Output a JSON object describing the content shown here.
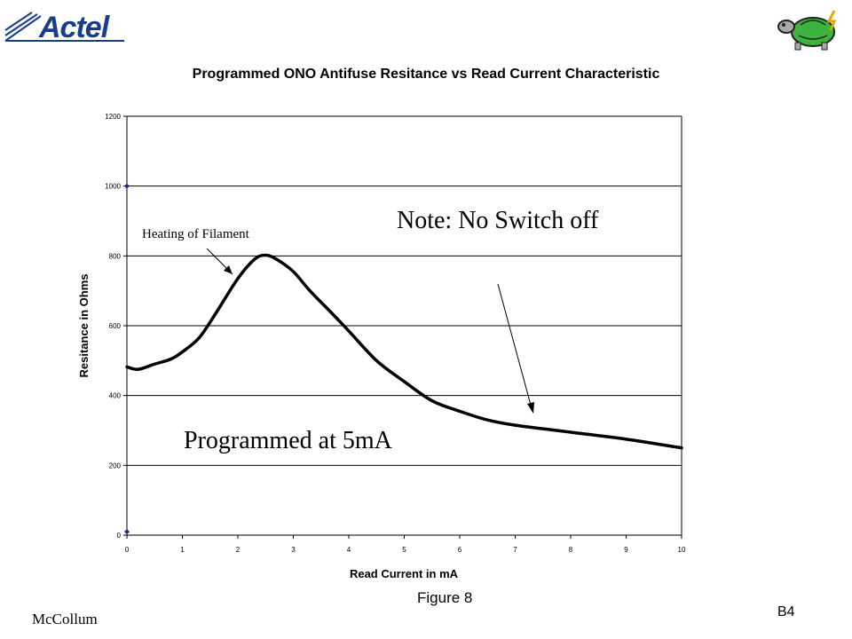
{
  "logo": {
    "text": "Actel"
  },
  "chart_data": {
    "type": "line",
    "title": "Programmed ONO Antifuse Resitance vs Read Current Characteristic",
    "xlabel": "Read Current in mA",
    "ylabel": "Resitance in Ohms",
    "xlim": [
      0,
      10
    ],
    "ylim": [
      0,
      1200
    ],
    "x_ticks": [
      "0",
      "1",
      "2",
      "3",
      "4",
      "5",
      "6",
      "7",
      "8",
      "9",
      "10"
    ],
    "y_ticks": [
      "0",
      "200",
      "400",
      "600",
      "800",
      "1000",
      "1200"
    ],
    "grid": "horizontal",
    "series": [
      {
        "color": "#000000",
        "x": [
          0,
          0.2,
          0.5,
          0.8,
          1.0,
          1.3,
          1.6,
          2.0,
          2.3,
          2.5,
          2.7,
          3.0,
          3.3,
          3.7,
          4.0,
          4.5,
          5.0,
          5.5,
          6.0,
          6.5,
          7.0,
          8.0,
          9.0,
          10.0
        ],
        "y": [
          482,
          475,
          490,
          505,
          525,
          565,
          635,
          735,
          790,
          802,
          790,
          755,
          700,
          635,
          585,
          500,
          440,
          385,
          355,
          330,
          315,
          295,
          275,
          250
        ]
      }
    ],
    "markers": [
      {
        "x": 0,
        "y": 1000
      },
      {
        "x": 0,
        "y": 10
      }
    ],
    "annotations": [
      {
        "text": "Heating of Filament"
      },
      {
        "text": "Note: No Switch off"
      },
      {
        "text": "Programmed at 5mA"
      }
    ]
  },
  "figure_label": "Figure 8",
  "author": "McCollum",
  "page_id": "B4"
}
